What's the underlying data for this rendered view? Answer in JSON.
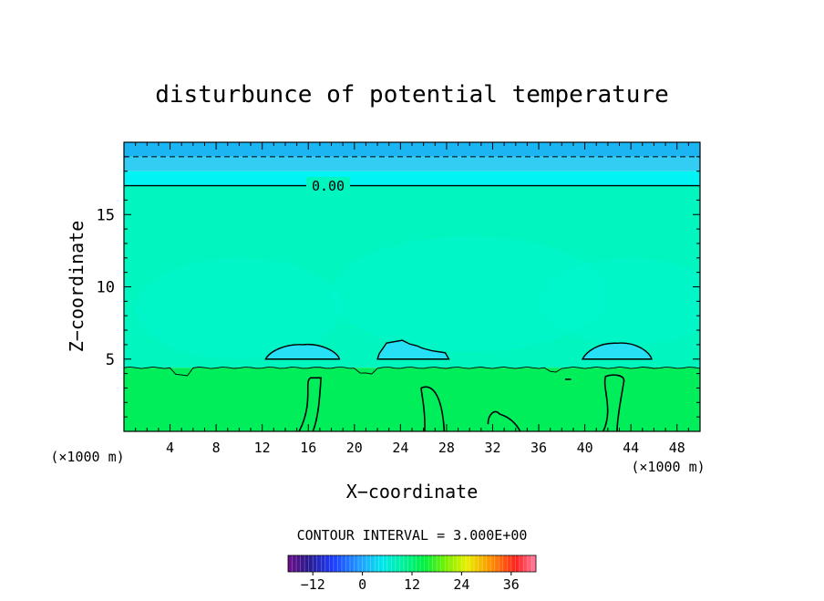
{
  "chart_data": {
    "type": "heatmap",
    "title": "disturbunce of potential temperature",
    "xlabel": "X−coordinate",
    "ylabel": "Z−coordinate",
    "x_unit_label": "(×1000 m)",
    "x_unit_label_right": "(×1000 m)",
    "xlim": [
      0,
      50
    ],
    "ylim": [
      0,
      20
    ],
    "x_ticks": [
      "4",
      "8",
      "12",
      "16",
      "20",
      "24",
      "28",
      "32",
      "36",
      "40",
      "44",
      "48"
    ],
    "y_ticks": [
      "5",
      "10",
      "15"
    ],
    "contour_label": "0.00",
    "contour_interval_text": "CONTOUR INTERVAL = 3.000E+00",
    "colorbar": {
      "range": [
        -18,
        42
      ],
      "ticks": [
        "−12",
        "0",
        "12",
        "24",
        "36"
      ]
    },
    "layers": [
      {
        "z_from": 19.0,
        "z_to": 20.0,
        "value": -3.5
      },
      {
        "z_from": 18.0,
        "z_to": 19.0,
        "value": -2.0
      },
      {
        "z_from": 17.0,
        "z_to": 18.0,
        "value": -0.5
      },
      {
        "z_from": 4.4,
        "z_to": 17.0,
        "value": 3.0
      },
      {
        "z_from": 0.0,
        "z_to": 4.4,
        "value": 7.0
      }
    ],
    "negative_cloud_regions": [
      {
        "x_from": 12.3,
        "x_to": 18.7,
        "z_top": 6.0
      },
      {
        "x_from": 22.0,
        "x_to": 28.2,
        "z_top": 6.3
      },
      {
        "x_from": 39.8,
        "x_to": 45.8,
        "z_top": 6.1
      }
    ],
    "colors": {
      "layer_top": "#1bb5f4",
      "layer_upper": "#33cdf3",
      "layer_cyan": "#00f4f4",
      "mid": "#00f5bf",
      "low": "#00ee5a",
      "cloud": "#26e0f6"
    }
  }
}
